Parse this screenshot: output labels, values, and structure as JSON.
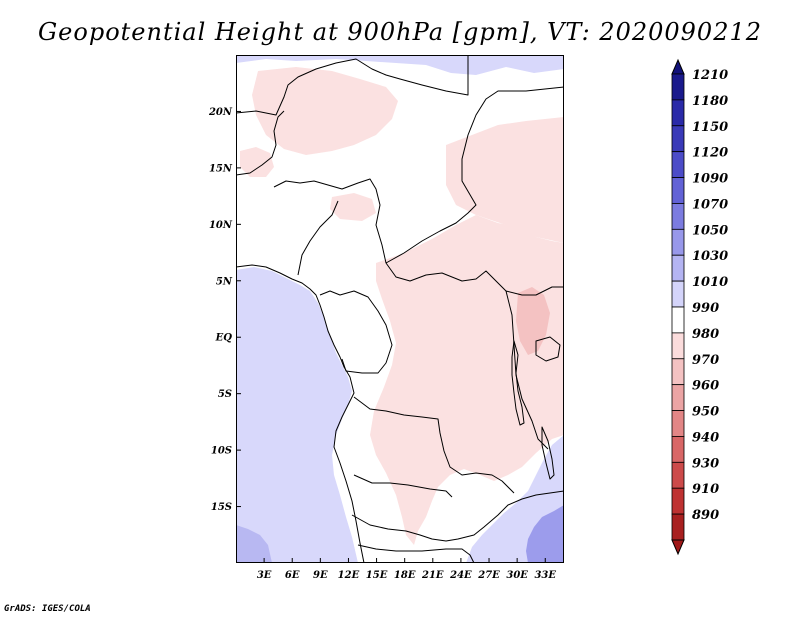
{
  "title": "Geopotential Height at 900hPa [gpm], VT: 2020090212",
  "credit": "GrADS: IGES/COLA",
  "map": {
    "lon_range": [
      0,
      35
    ],
    "lat_range": [
      -20,
      25
    ],
    "lat_labels": [
      "20N",
      "15N",
      "10N",
      "5N",
      "EQ",
      "5S",
      "10S",
      "15S"
    ],
    "lat_values": [
      20,
      15,
      10,
      5,
      0,
      -5,
      -10,
      -15
    ],
    "lon_labels": [
      "3E",
      "6E",
      "9E",
      "12E",
      "15E",
      "18E",
      "21E",
      "24E",
      "27E",
      "30E",
      "33E"
    ],
    "lon_values": [
      3,
      6,
      9,
      12,
      15,
      18,
      21,
      24,
      27,
      30,
      33
    ]
  },
  "colorbar": {
    "labels": [
      "1210",
      "1180",
      "1150",
      "1120",
      "1090",
      "1070",
      "1050",
      "1030",
      "1010",
      "990",
      "980",
      "970",
      "960",
      "950",
      "940",
      "930",
      "910",
      "890"
    ],
    "colors": [
      "#1a1a8c",
      "#2a2aa8",
      "#3a3ab8",
      "#4c4cc8",
      "#6262d6",
      "#7c7ce0",
      "#9898ea",
      "#b4b4f2",
      "#d4d4fa",
      "#ffffff",
      "#fbdcdc",
      "#f4c2c2",
      "#eba4a4",
      "#e28686",
      "#d86666",
      "#cc4a4a",
      "#be3232",
      "#a82020"
    ],
    "top_color": "#12127a",
    "bottom_color": "#a01818"
  },
  "colors": {
    "ocean_blue": "#d8d8fb",
    "low_pink": "#fbe1e1",
    "border": "#000000"
  }
}
